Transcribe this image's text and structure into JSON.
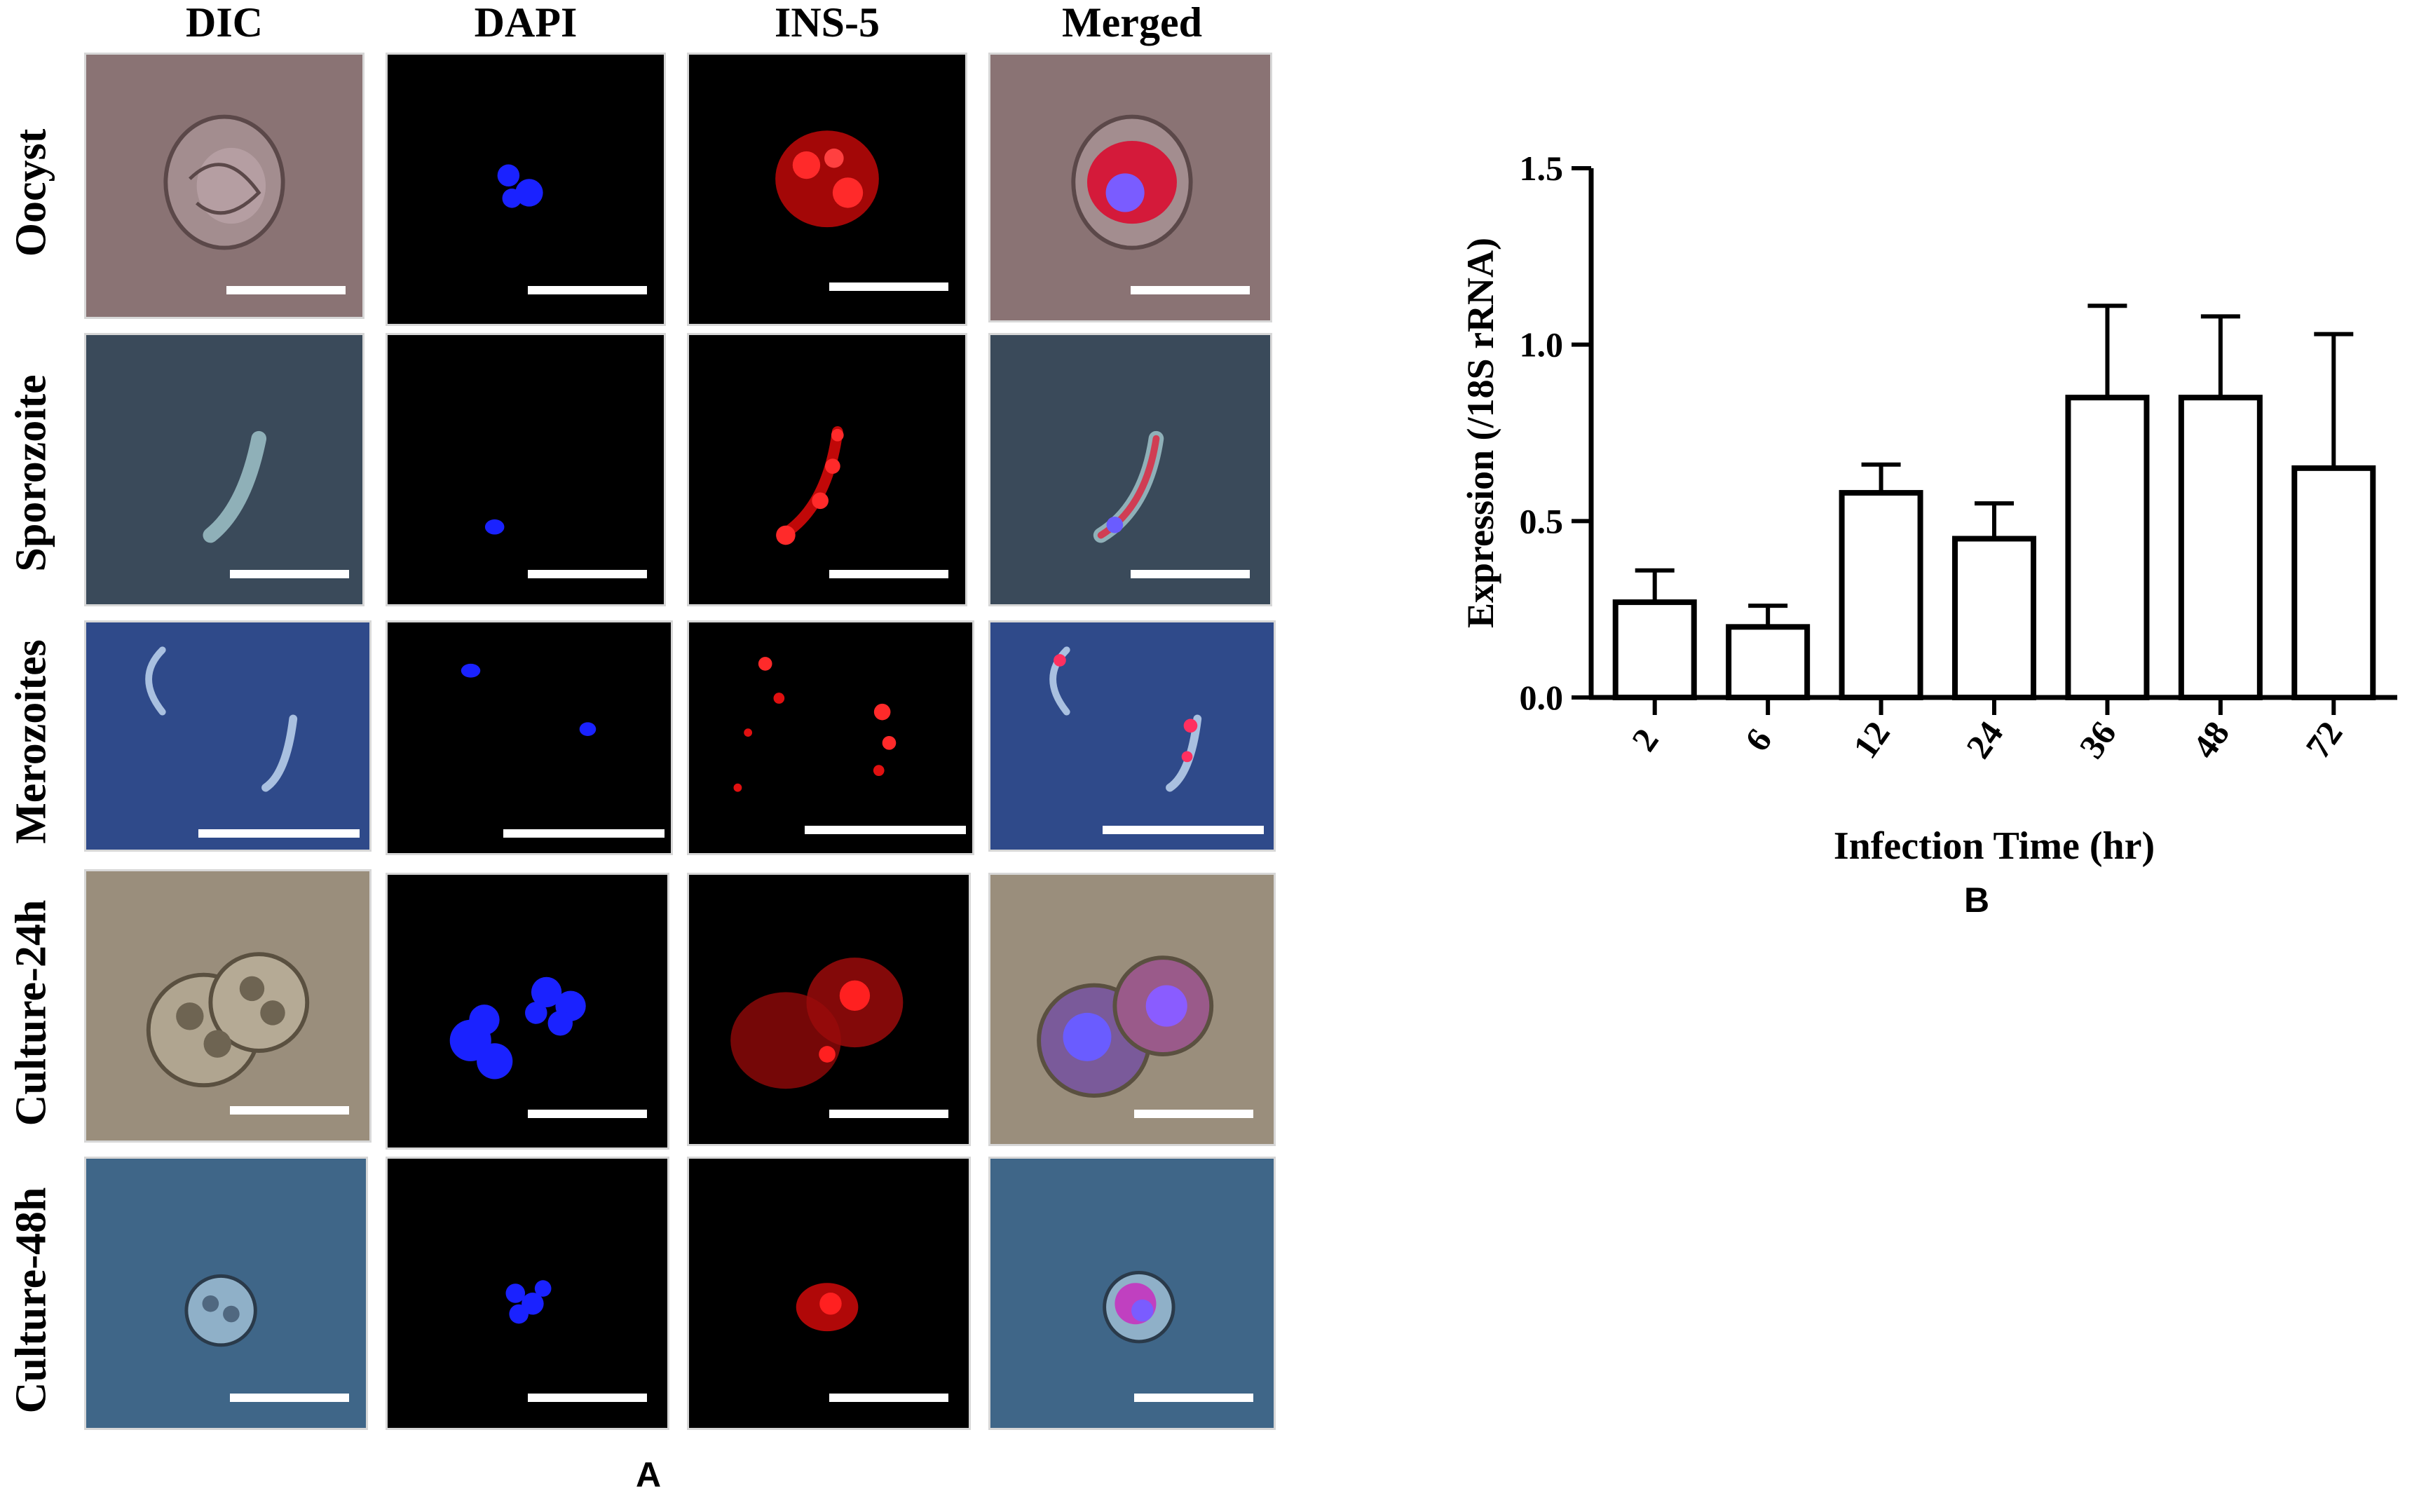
{
  "panel_a": {
    "letter": "A",
    "columns": [
      "DIC",
      "DAPI",
      "INS-5",
      "Merged"
    ],
    "rows": [
      "Oocyst",
      "Sporozoite",
      "Merozoites",
      "Culture-24h",
      "Culture-48h"
    ]
  },
  "panel_b": {
    "letter": "B"
  },
  "colors": {
    "dic_oocyst": "#8a7374",
    "dic_sporozoite": "#3a4a5a",
    "dic_merozoites": "#2f4a8a",
    "dic_culture24": "#9a8e7c",
    "dic_culture48": "#3f6688",
    "dapi": "#1a22ff",
    "ins5": "#e01010",
    "bar_fill": "#ffffff",
    "bar_stroke": "#000000"
  },
  "chart_data": {
    "type": "bar",
    "categories": [
      "2",
      "6",
      "12",
      "24",
      "36",
      "48",
      "72"
    ],
    "values": [
      0.27,
      0.2,
      0.58,
      0.45,
      0.85,
      0.85,
      0.65
    ],
    "errors": [
      0.09,
      0.06,
      0.08,
      0.1,
      0.26,
      0.23,
      0.38
    ],
    "xlabel": "Infection Time (hr)",
    "ylabel": "Expression (/18S rRNA)",
    "yticks": [
      "0.0",
      "0.5",
      "1.0",
      "1.5"
    ],
    "ylim": [
      0,
      1.5
    ],
    "grid": false
  }
}
